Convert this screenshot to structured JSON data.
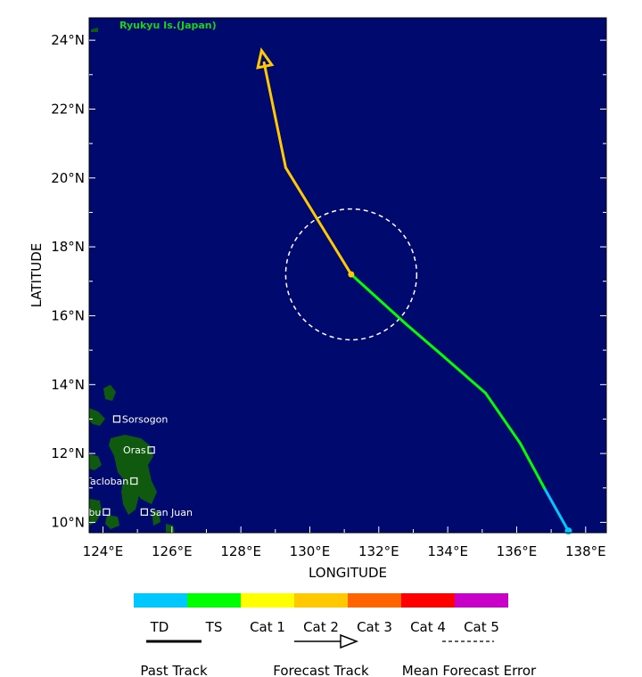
{
  "map": {
    "xlabel": "LONGITUDE",
    "ylabel": "LATITUDE",
    "region_label": "Ryukyu Is.(Japan)",
    "ocean_color": "#000a6e",
    "land_color": "#0f5a0f",
    "lon_ticks": [
      "124°E",
      "126°E",
      "128°E",
      "130°E",
      "132°E",
      "134°E",
      "136°E",
      "138°E"
    ],
    "lat_ticks": [
      "10°N",
      "12°N",
      "14°N",
      "16°N",
      "18°N",
      "20°N",
      "22°N",
      "24°N"
    ],
    "places": [
      {
        "name": "Sorsogon",
        "lon": 124.4,
        "lat": 13.0
      },
      {
        "name": "Oras",
        "lon": 125.4,
        "lat": 12.1
      },
      {
        "name": "Tacloban",
        "lon": 124.9,
        "lat": 11.2
      },
      {
        "name": "San Juan",
        "lon": 125.2,
        "lat": 10.3
      },
      {
        "name": "Cebu",
        "lon": 124.1,
        "lat": 10.3
      }
    ]
  },
  "track": {
    "past": [
      {
        "lon": 137.5,
        "lat": 9.75,
        "cat": "TD"
      },
      {
        "lon": 136.8,
        "lat": 11.0,
        "cat": "TD"
      },
      {
        "lon": 136.1,
        "lat": 12.3,
        "cat": "TS"
      },
      {
        "lon": 135.1,
        "lat": 13.75,
        "cat": "TS"
      },
      {
        "lon": 133.9,
        "lat": 14.8,
        "cat": "TS"
      },
      {
        "lon": 132.8,
        "lat": 15.75,
        "cat": "TS"
      },
      {
        "lon": 131.2,
        "lat": 17.2,
        "cat": "TS"
      }
    ],
    "forecast": [
      {
        "lon": 131.2,
        "lat": 17.2,
        "cat": "Cat 2"
      },
      {
        "lon": 129.3,
        "lat": 20.3,
        "cat": "Cat 2"
      },
      {
        "lon": 128.6,
        "lat": 23.7,
        "cat": "Cat 2"
      }
    ],
    "error_circle": {
      "lon": 131.2,
      "lat": 17.2,
      "radius_deg_lat": 1.9
    }
  },
  "legend": {
    "categories": [
      {
        "label": "TD",
        "color": "#00c8ff"
      },
      {
        "label": "TS",
        "color": "#00ff00"
      },
      {
        "label": "Cat 1",
        "color": "#ffff00"
      },
      {
        "label": "Cat 2",
        "color": "#ffc800"
      },
      {
        "label": "Cat 3",
        "color": "#ff6400"
      },
      {
        "label": "Cat 4",
        "color": "#ff0000"
      },
      {
        "label": "Cat 5",
        "color": "#c800c8"
      }
    ],
    "past_track": "Past Track",
    "forecast_track": "Forecast Track",
    "mean_error": "Mean Forecast Error"
  }
}
